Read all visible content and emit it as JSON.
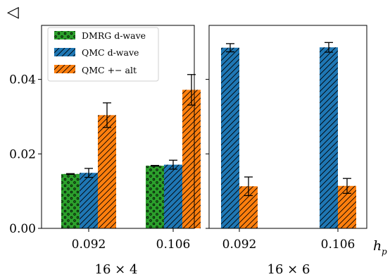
{
  "chart_data": {
    "type": "bar",
    "ylabel_symbol": "◁",
    "x_axis_symbol": "h",
    "x_axis_subscript": "p",
    "ylim": [
      0,
      0.0545
    ],
    "y_ticks": [
      0.0,
      0.02,
      0.04
    ],
    "y_tick_labels": [
      "0.00",
      "0.02",
      "0.04"
    ],
    "legend": {
      "placement": "top-left",
      "entries": [
        "DMRG d-wave",
        "QMC d-wave",
        "QMC +− alt"
      ]
    },
    "series_styles": [
      {
        "name": "DMRG d-wave",
        "color": "#2ca02c",
        "hatch": "dots"
      },
      {
        "name": "QMC d-wave",
        "color": "#1f77b4",
        "hatch": "diagonal"
      },
      {
        "name": "QMC +− alt",
        "color": "#ff7f0e",
        "hatch": "diagonal"
      }
    ],
    "panels": [
      {
        "label": "16 × 4",
        "categories": [
          "0.092",
          "0.106"
        ],
        "series": [
          {
            "name": "DMRG d-wave",
            "values": [
              0.0146,
              0.0168
            ],
            "errors": [
              0.0001,
              0.0001
            ]
          },
          {
            "name": "QMC d-wave",
            "values": [
              0.0149,
              0.0171
            ],
            "errors": [
              0.0012,
              0.0012
            ]
          },
          {
            "name": "QMC +− alt",
            "values": [
              0.0304,
              0.0372
            ],
            "errors": [
              0.0033,
              0.0041
            ]
          }
        ]
      },
      {
        "label": "16 × 6",
        "categories": [
          "0.092",
          "0.106"
        ],
        "series": [
          {
            "name": "QMC d-wave",
            "values": [
              0.0485,
              0.0486
            ],
            "errors": [
              0.0011,
              0.0013
            ]
          },
          {
            "name": "QMC +− alt",
            "values": [
              0.0113,
              0.0114
            ],
            "errors": [
              0.0025,
              0.002
            ]
          }
        ]
      }
    ]
  }
}
